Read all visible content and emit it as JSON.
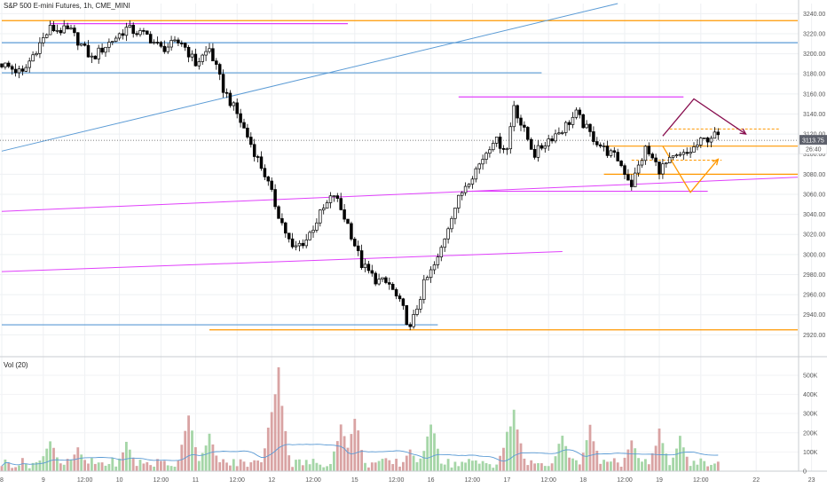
{
  "chart_data": {
    "type": "candlestick",
    "title": "S&P 500 E-mini Futures, 1h, CME_MINI",
    "price_axis": {
      "range": [
        2900,
        3250
      ],
      "ticks": [
        3240,
        3220,
        3200,
        3180,
        3160,
        3140,
        3120,
        3100,
        3080,
        3060,
        3040,
        3020,
        3000,
        2980,
        2960,
        2940,
        2920
      ],
      "tick_labels": [
        "3240.00",
        "3220.00",
        "3200.00",
        "3180.00",
        "3160.00",
        "3140.00",
        "3120.00",
        "3100.00",
        "3080.00",
        "3060.00",
        "3040.00",
        "3020.00",
        "3000.00",
        "2980.00",
        "2960.00",
        "2940.00",
        "2920.00"
      ]
    },
    "current_price": {
      "value": 3113.75,
      "label": "3113.75",
      "countdown": "26:40"
    },
    "volume": {
      "label": "Vol (20)",
      "range": [
        0,
        560
      ],
      "ticks": [
        500,
        400,
        300,
        200,
        100,
        0
      ],
      "tick_labels": [
        "500K",
        "400K",
        "300K",
        "200K",
        "100K",
        "0"
      ]
    },
    "time_axis": {
      "labels": [
        "8",
        "9",
        "12:00",
        "10",
        "12:00",
        "11",
        "12:00",
        "12",
        "12:00",
        "15",
        "12:00",
        "16",
        "12:00",
        "17",
        "12:00",
        "18",
        "12:00",
        "19",
        "12:00",
        "22",
        "23"
      ],
      "positions": [
        0,
        12,
        24,
        34,
        46,
        56,
        68,
        78,
        90,
        102,
        114,
        124,
        136,
        146,
        158,
        168,
        180,
        190,
        202,
        218,
        234
      ]
    },
    "bar_count": 208,
    "anchors": [
      [
        0,
        3190
      ],
      [
        6,
        3180
      ],
      [
        10,
        3205
      ],
      [
        14,
        3225
      ],
      [
        20,
        3222
      ],
      [
        26,
        3195
      ],
      [
        30,
        3208
      ],
      [
        36,
        3225
      ],
      [
        42,
        3218
      ],
      [
        46,
        3205
      ],
      [
        52,
        3212
      ],
      [
        56,
        3190
      ],
      [
        60,
        3205
      ],
      [
        64,
        3165
      ],
      [
        68,
        3140
      ],
      [
        72,
        3110
      ],
      [
        76,
        3080
      ],
      [
        80,
        3040
      ],
      [
        84,
        3005
      ],
      [
        88,
        3015
      ],
      [
        92,
        3040
      ],
      [
        96,
        3060
      ],
      [
        100,
        3030
      ],
      [
        104,
        2990
      ],
      [
        108,
        2975
      ],
      [
        112,
        2970
      ],
      [
        116,
        2945
      ],
      [
        118,
        2925
      ],
      [
        122,
        2970
      ],
      [
        126,
        2995
      ],
      [
        130,
        3040
      ],
      [
        134,
        3070
      ],
      [
        138,
        3090
      ],
      [
        142,
        3115
      ],
      [
        146,
        3105
      ],
      [
        148,
        3150
      ],
      [
        150,
        3130
      ],
      [
        154,
        3100
      ],
      [
        158,
        3115
      ],
      [
        162,
        3125
      ],
      [
        166,
        3140
      ],
      [
        170,
        3120
      ],
      [
        174,
        3105
      ],
      [
        178,
        3095
      ],
      [
        182,
        3070
      ],
      [
        186,
        3105
      ],
      [
        190,
        3085
      ],
      [
        194,
        3095
      ],
      [
        198,
        3100
      ],
      [
        202,
        3112
      ],
      [
        205,
        3118
      ]
    ],
    "volume_spikes": [
      [
        14,
        180
      ],
      [
        22,
        130
      ],
      [
        36,
        160
      ],
      [
        54,
        330
      ],
      [
        60,
        230
      ],
      [
        78,
        320
      ],
      [
        80,
        560
      ],
      [
        98,
        260
      ],
      [
        102,
        300
      ],
      [
        118,
        130
      ],
      [
        124,
        280
      ],
      [
        146,
        210
      ],
      [
        148,
        330
      ],
      [
        162,
        200
      ],
      [
        170,
        250
      ],
      [
        182,
        180
      ],
      [
        190,
        230
      ],
      [
        196,
        200
      ]
    ],
    "horizontal_lines": [
      {
        "price": 3233,
        "from_bar": 0,
        "to_bar": 230,
        "color": "#ff9800"
      },
      {
        "price": 3230,
        "from_bar": 14,
        "to_bar": 100,
        "color": "#e040fb"
      },
      {
        "price": 3211,
        "from_bar": 0,
        "to_bar": 230,
        "color": "#5b9bd5"
      },
      {
        "price": 3181,
        "from_bar": 0,
        "to_bar": 156,
        "color": "#5b9bd5"
      },
      {
        "price": 3157,
        "from_bar": 132,
        "to_bar": 197,
        "color": "#e040fb"
      },
      {
        "price": 3108,
        "from_bar": 174,
        "to_bar": 230,
        "color": "#ff9800"
      },
      {
        "price": 3080,
        "from_bar": 174,
        "to_bar": 230,
        "color": "#ff9800"
      },
      {
        "price": 3063,
        "from_bar": 134,
        "to_bar": 204,
        "color": "#e040fb"
      },
      {
        "price": 2930,
        "from_bar": 0,
        "to_bar": 126,
        "color": "#5b9bd5"
      },
      {
        "price": 2925,
        "from_bar": 60,
        "to_bar": 230,
        "color": "#ff9800"
      }
    ],
    "trend_lines": [
      {
        "from": [
          0,
          3103
        ],
        "to": [
          178,
          3250
        ],
        "color": "#5b9bd5"
      },
      {
        "from": [
          0,
          3043
        ],
        "to": [
          230,
          3077
        ],
        "color": "#e040fb"
      },
      {
        "from": [
          0,
          2983
        ],
        "to": [
          162,
          3003
        ],
        "color": "#e040fb"
      }
    ],
    "dashed_lines": [
      {
        "price": 3125,
        "from_bar": 193,
        "to_bar": 225,
        "color": "#ff9800"
      },
      {
        "price": 3094,
        "from_bar": 182,
        "to_bar": 208,
        "color": "#ff9800"
      }
    ],
    "projection_paths": [
      {
        "points": [
          [
            191,
            3118
          ],
          [
            200,
            3155
          ],
          [
            215,
            3120
          ]
        ],
        "color": "#880e4f"
      },
      {
        "points": [
          [
            191,
            3108
          ],
          [
            199,
            3062
          ],
          [
            207,
            3095
          ]
        ],
        "color": "#ff9800"
      }
    ]
  }
}
